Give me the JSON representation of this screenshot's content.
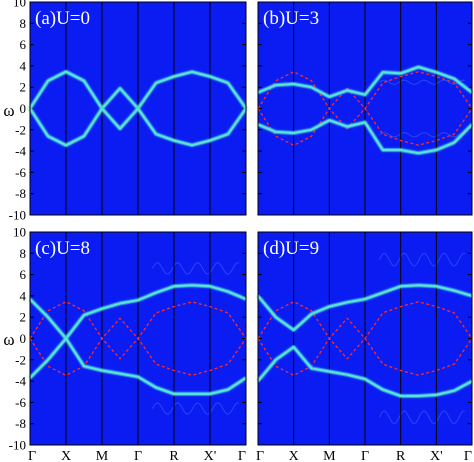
{
  "figure": {
    "ylabel": "ω",
    "colors": {
      "background": "#0a1cf2",
      "band": "#59e6d4",
      "band_glow": "#3aa9f5",
      "free_band": "#ff2a2a",
      "vline": "#000000",
      "shadow_band": "#2c53f5"
    }
  },
  "chart_data": [
    {
      "type": "line",
      "panel_label": "(a)U=0",
      "U": 0,
      "ylim": [
        -10,
        10
      ],
      "yticks": [
        -10,
        -8,
        -6,
        -4,
        -2,
        0,
        2,
        4,
        6,
        8,
        10
      ],
      "x_ticks": [
        "Γ",
        "X",
        "M",
        "Γ",
        "R",
        "X'",
        "Γ"
      ],
      "show_xtick_labels": false,
      "show_ytick_labels": true,
      "series": [
        {
          "style": "free_dashed",
          "x": [
            0,
            0.5,
            1,
            1.5,
            2,
            2.5,
            3,
            3.5,
            4,
            4.5,
            5,
            5.5,
            6
          ],
          "y": [
            0,
            2.6,
            3.46,
            2.6,
            0,
            1.9,
            0,
            2.4,
            3.0,
            3.45,
            3.0,
            2.4,
            0
          ]
        },
        {
          "style": "free_dashed",
          "x": [
            0,
            0.5,
            1,
            1.5,
            2,
            2.5,
            3,
            3.5,
            4,
            4.5,
            5,
            5.5,
            6
          ],
          "y": [
            0,
            -2.6,
            -3.46,
            -2.6,
            0,
            -1.9,
            0,
            -2.4,
            -3.0,
            -3.45,
            -3.0,
            -2.4,
            0
          ]
        },
        {
          "style": "band",
          "x": [
            0,
            0.5,
            1,
            1.5,
            2,
            2.5,
            3,
            3.5,
            4,
            4.5,
            5,
            5.5,
            6
          ],
          "y": [
            0,
            2.6,
            3.46,
            2.6,
            0,
            1.9,
            0,
            2.4,
            3.0,
            3.45,
            3.0,
            2.4,
            0
          ]
        },
        {
          "style": "band",
          "x": [
            0,
            0.5,
            1,
            1.5,
            2,
            2.5,
            3,
            3.5,
            4,
            4.5,
            5,
            5.5,
            6
          ],
          "y": [
            0,
            -2.6,
            -3.46,
            -2.6,
            0,
            -1.9,
            0,
            -2.4,
            -3.0,
            -3.45,
            -3.0,
            -2.4,
            0
          ]
        }
      ]
    },
    {
      "type": "line",
      "panel_label": "(b)U=3",
      "U": 3,
      "ylim": [
        -10,
        10
      ],
      "yticks": [
        -10,
        -8,
        -6,
        -4,
        -2,
        0,
        2,
        4,
        6,
        8,
        10
      ],
      "x_ticks": [
        "Γ",
        "X",
        "M",
        "Γ",
        "R",
        "X'",
        "Γ"
      ],
      "show_xtick_labels": false,
      "show_ytick_labels": false,
      "series": [
        {
          "style": "free_dashed",
          "x": [
            0,
            0.5,
            1,
            1.5,
            2,
            2.5,
            3,
            3.5,
            4,
            4.5,
            5,
            5.5,
            6
          ],
          "y": [
            0,
            2.6,
            3.46,
            2.6,
            0,
            1.9,
            0,
            2.4,
            3.0,
            3.45,
            3.0,
            2.4,
            0
          ]
        },
        {
          "style": "free_dashed",
          "x": [
            0,
            0.5,
            1,
            1.5,
            2,
            2.5,
            3,
            3.5,
            4,
            4.5,
            5,
            5.5,
            6
          ],
          "y": [
            0,
            -2.6,
            -3.46,
            -2.6,
            0,
            -1.9,
            0,
            -2.4,
            -3.0,
            -3.45,
            -3.0,
            -2.4,
            0
          ]
        },
        {
          "style": "band",
          "x": [
            0,
            0.5,
            1,
            1.5,
            2,
            2.5,
            3,
            3.5,
            4,
            4.5,
            5,
            5.5,
            6
          ],
          "y": [
            1.5,
            2.2,
            2.3,
            2.0,
            1.1,
            1.7,
            1.3,
            3.4,
            3.3,
            3.9,
            3.4,
            2.8,
            1.5
          ]
        },
        {
          "style": "band",
          "x": [
            0,
            0.5,
            1,
            1.5,
            2,
            2.5,
            3,
            3.5,
            4,
            4.5,
            5,
            5.5,
            6
          ],
          "y": [
            -1.5,
            -2.2,
            -2.3,
            -2.0,
            -1.1,
            -1.7,
            -1.3,
            -3.9,
            -3.9,
            -4.2,
            -3.9,
            -3.2,
            -1.5
          ]
        }
      ]
    },
    {
      "type": "line",
      "panel_label": "(c)U=8",
      "U": 8,
      "ylim": [
        -10,
        10
      ],
      "yticks": [
        -10,
        -8,
        -6,
        -4,
        -2,
        0,
        2,
        4,
        6,
        8,
        10
      ],
      "x_ticks": [
        "Γ",
        "X",
        "M",
        "Γ",
        "R",
        "X'",
        "Γ"
      ],
      "show_xtick_labels": true,
      "show_ytick_labels": true,
      "series": [
        {
          "style": "free_dashed",
          "x": [
            0,
            0.5,
            1,
            1.5,
            2,
            2.5,
            3,
            3.5,
            4,
            4.5,
            5,
            5.5,
            6
          ],
          "y": [
            0,
            2.6,
            3.46,
            2.6,
            0,
            1.9,
            0,
            2.4,
            3.0,
            3.45,
            3.0,
            2.4,
            0
          ]
        },
        {
          "style": "free_dashed",
          "x": [
            0,
            0.5,
            1,
            1.5,
            2,
            2.5,
            3,
            3.5,
            4,
            4.5,
            5,
            5.5,
            6
          ],
          "y": [
            0,
            -2.6,
            -3.46,
            -2.6,
            0,
            -1.9,
            0,
            -2.4,
            -3.0,
            -3.45,
            -3.0,
            -2.4,
            0
          ]
        },
        {
          "style": "band",
          "x": [
            0,
            0.5,
            1,
            1.5,
            2,
            2.5,
            3,
            3.5,
            4,
            4.5,
            5,
            5.5,
            6
          ],
          "y": [
            3.7,
            2.0,
            0,
            2.2,
            2.8,
            3.3,
            3.6,
            4.3,
            4.9,
            5.0,
            4.9,
            4.4,
            3.7
          ]
        },
        {
          "style": "band",
          "x": [
            0,
            0.5,
            1,
            1.5,
            2,
            2.5,
            3,
            3.5,
            4,
            4.5,
            5,
            5.5,
            6
          ],
          "y": [
            -3.7,
            -2.0,
            0,
            -2.6,
            -3.0,
            -3.3,
            -3.6,
            -4.6,
            -5.2,
            -5.2,
            -5.2,
            -4.8,
            -3.7
          ]
        }
      ]
    },
    {
      "type": "line",
      "panel_label": "(d)U=9",
      "U": 9,
      "ylim": [
        -10,
        10
      ],
      "yticks": [
        -10,
        -8,
        -6,
        -4,
        -2,
        0,
        2,
        4,
        6,
        8,
        10
      ],
      "x_ticks": [
        "Γ",
        "X",
        "M",
        "Γ",
        "R",
        "X'",
        "Γ"
      ],
      "show_xtick_labels": true,
      "show_ytick_labels": false,
      "series": [
        {
          "style": "free_dashed",
          "x": [
            0,
            0.5,
            1,
            1.5,
            2,
            2.5,
            3,
            3.5,
            4,
            4.5,
            5,
            5.5,
            6
          ],
          "y": [
            0,
            2.6,
            3.46,
            2.6,
            0,
            1.9,
            0,
            2.4,
            3.0,
            3.45,
            3.0,
            2.4,
            0
          ]
        },
        {
          "style": "free_dashed",
          "x": [
            0,
            0.5,
            1,
            1.5,
            2,
            2.5,
            3,
            3.5,
            4,
            4.5,
            5,
            5.5,
            6
          ],
          "y": [
            0,
            -2.6,
            -3.46,
            -2.6,
            0,
            -1.9,
            0,
            -2.4,
            -3.0,
            -3.45,
            -3.0,
            -2.4,
            0
          ]
        },
        {
          "style": "band",
          "x": [
            0,
            0.5,
            1,
            1.5,
            2,
            2.5,
            3,
            3.5,
            4,
            4.5,
            5,
            5.5,
            6
          ],
          "y": [
            4.0,
            2.0,
            0.8,
            2.3,
            3.0,
            3.4,
            3.7,
            4.3,
            4.9,
            5.0,
            4.9,
            4.5,
            4.0
          ]
        },
        {
          "style": "band",
          "x": [
            0,
            0.5,
            1,
            1.5,
            2,
            2.5,
            3,
            3.5,
            4,
            4.5,
            5,
            5.5,
            6
          ],
          "y": [
            -4.0,
            -2.0,
            -0.8,
            -2.8,
            -3.1,
            -3.4,
            -3.8,
            -4.8,
            -5.4,
            -5.4,
            -5.3,
            -4.9,
            -4.0
          ]
        }
      ]
    }
  ]
}
